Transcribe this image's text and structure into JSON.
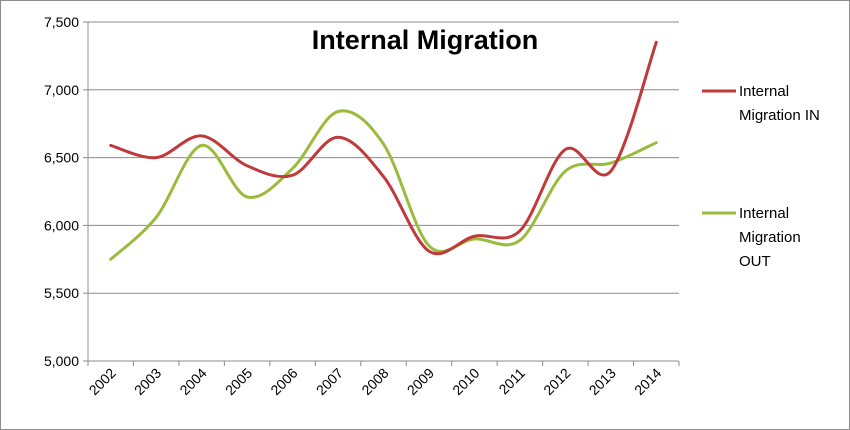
{
  "chart_data": {
    "type": "line",
    "title": "Internal Migration",
    "xlabel": "",
    "ylabel": "",
    "categories": [
      "2002",
      "2003",
      "2004",
      "2005",
      "2006",
      "2007",
      "2008",
      "2009",
      "2010",
      "2011",
      "2012",
      "2013",
      "2014"
    ],
    "y_ticks": [
      "5,000",
      "5,500",
      "6,000",
      "6,500",
      "7,000",
      "7,500"
    ],
    "y_tick_values": [
      5000,
      5500,
      6000,
      6500,
      7000,
      7500
    ],
    "ylim": [
      5000,
      7500
    ],
    "grid": true,
    "legend_position": "right",
    "series": [
      {
        "name": "Internal Migration IN",
        "legend_lines": [
          "Internal",
          "Migration IN"
        ],
        "color": "#c0393b",
        "values": [
          6590,
          6500,
          6660,
          6440,
          6370,
          6650,
          6360,
          5810,
          5920,
          5960,
          6560,
          6400,
          7350
        ]
      },
      {
        "name": "Internal Migration OUT",
        "legend_lines": [
          "Internal",
          "Migration",
          "OUT"
        ],
        "color": "#9bbb3c",
        "values": [
          5750,
          6060,
          6590,
          6210,
          6420,
          6840,
          6600,
          5850,
          5900,
          5890,
          6400,
          6460,
          6610
        ]
      }
    ]
  }
}
